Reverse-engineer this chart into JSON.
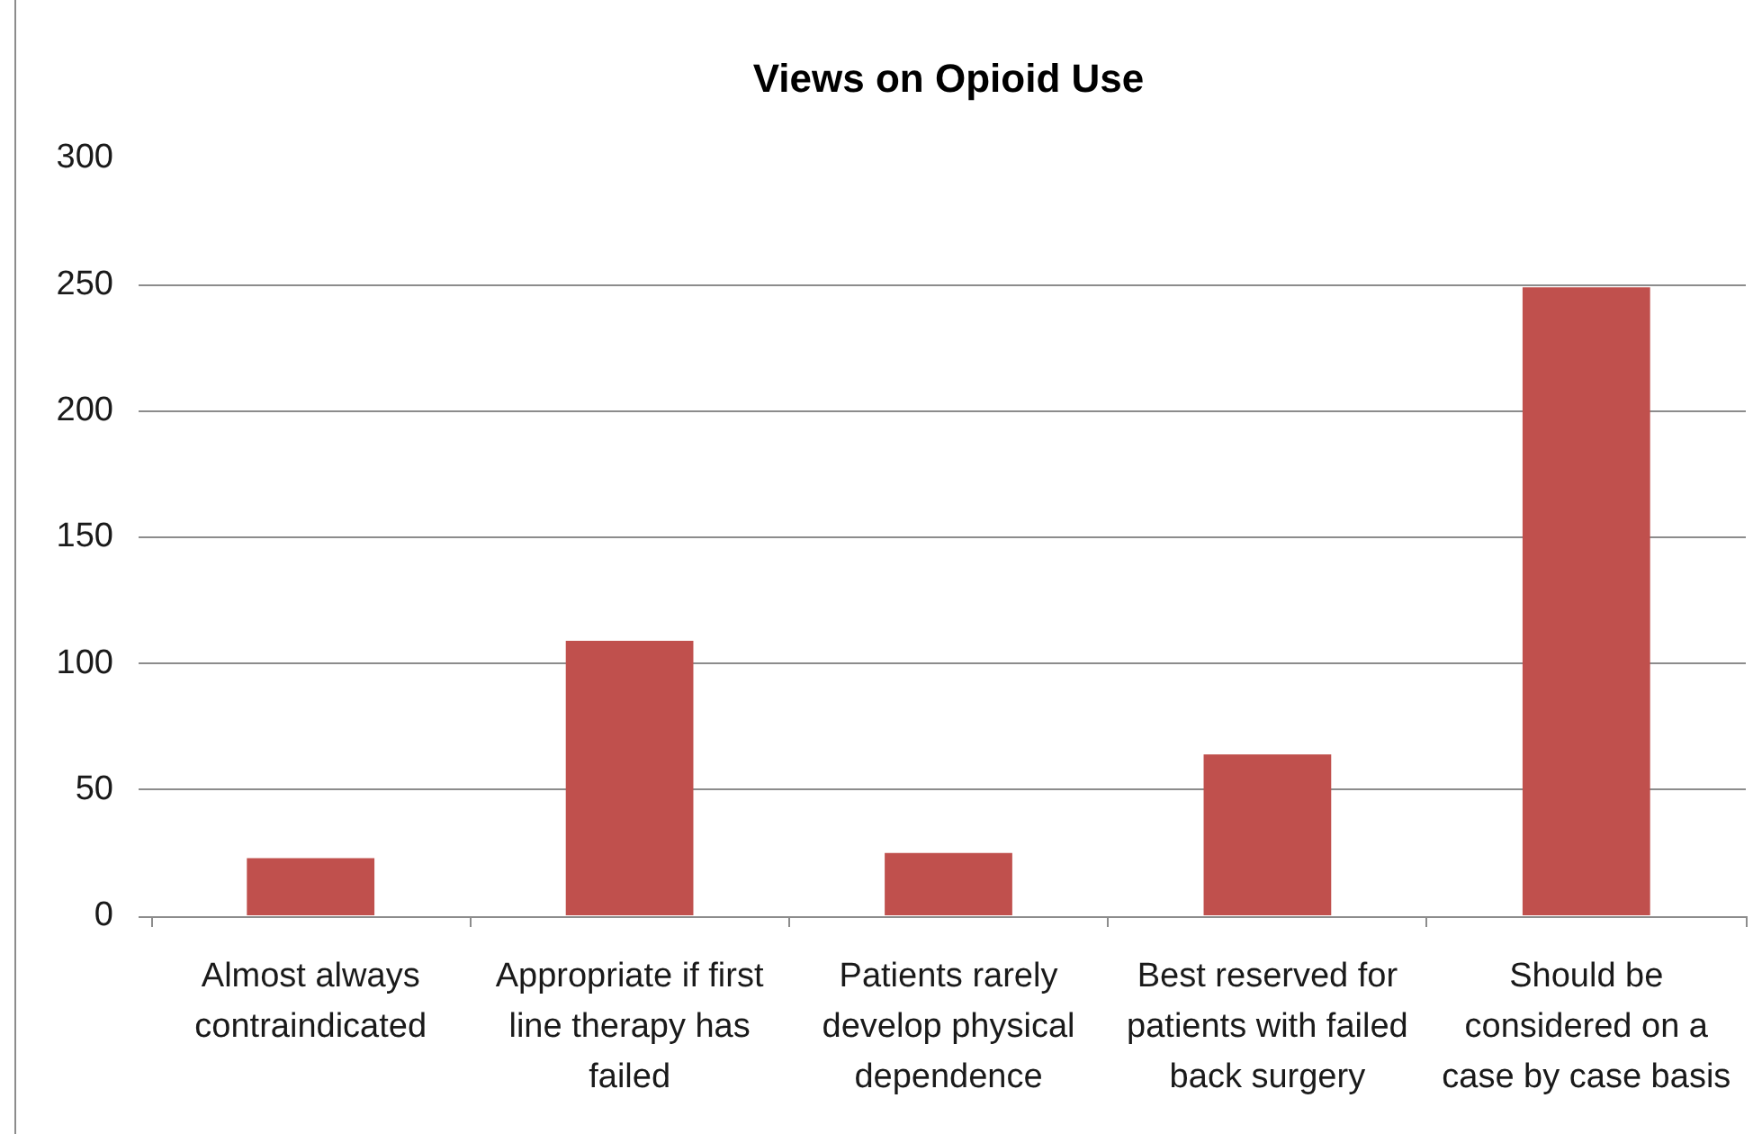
{
  "chart_data": {
    "type": "bar",
    "title": "Views on Opioid Use",
    "categories": [
      "Almost always contraindicated",
      "Appropriate if first line therapy has failed",
      "Patients rarely develop physical dependence",
      "Best reserved for patients with failed back surgery",
      "Should be considered on a case by case basis"
    ],
    "values": [
      23,
      109,
      25,
      64,
      249
    ],
    "color": "#c0504d",
    "ylim": [
      0,
      300
    ],
    "yticks": [
      0,
      50,
      100,
      150,
      200,
      250,
      300
    ],
    "grid": "y"
  }
}
